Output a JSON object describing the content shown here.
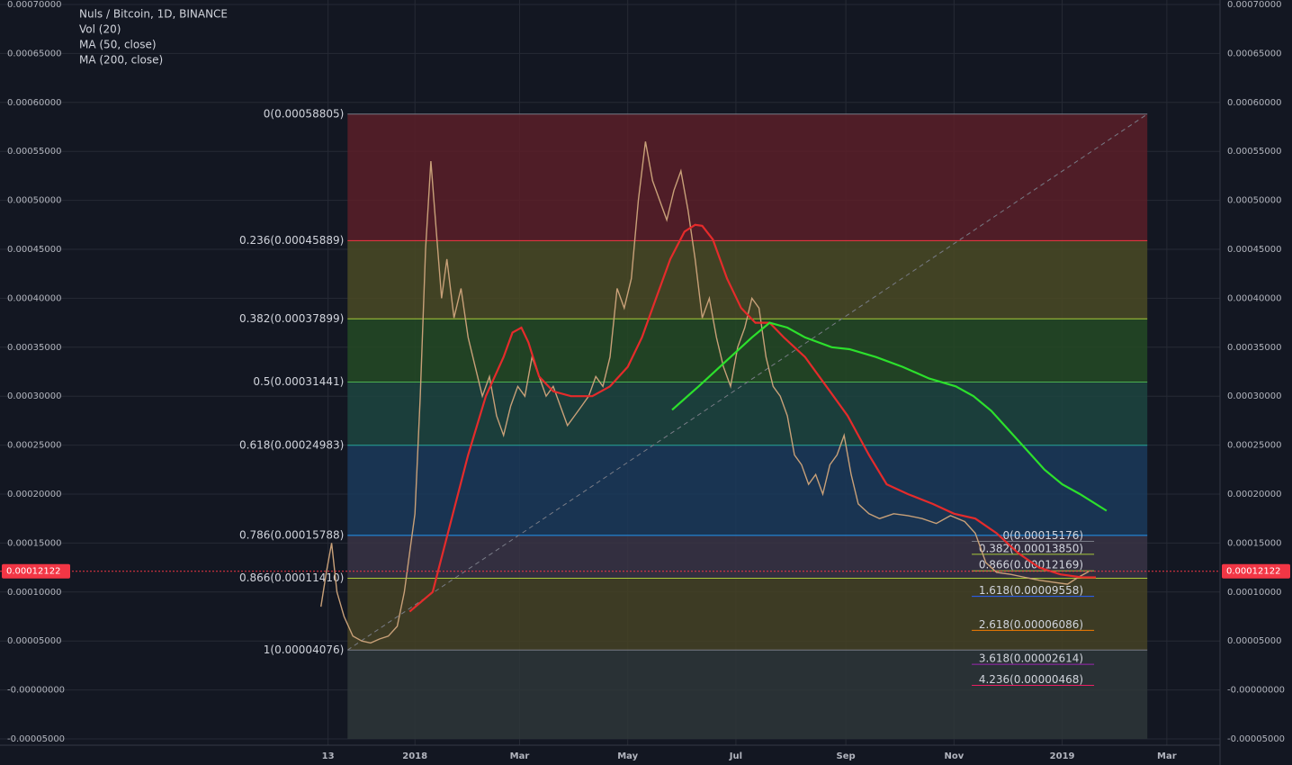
{
  "chart_data": {
    "type": "line",
    "title": "Nuls / Bitcoin, 1D, BINANCE",
    "indicators": [
      "Vol (20)",
      "MA (50, close)",
      "MA (200, close)"
    ],
    "xlim": [
      -234,
      454
    ],
    "xticks": [
      {
        "value": -49,
        "label": "13"
      },
      {
        "value": 0,
        "label": "2018"
      },
      {
        "value": 59,
        "label": "Mar"
      },
      {
        "value": 120,
        "label": "May"
      },
      {
        "value": 181,
        "label": "Jul"
      },
      {
        "value": 243,
        "label": "Sep"
      },
      {
        "value": 304,
        "label": "Nov"
      },
      {
        "value": 365,
        "label": "2019"
      },
      {
        "value": 424,
        "label": "Mar"
      }
    ],
    "ylim": [
      -5e-05,
      0.0007
    ],
    "yticks": [
      {
        "value": 0.0007,
        "label": "0.00070000"
      },
      {
        "value": 0.00065,
        "label": "0.00065000"
      },
      {
        "value": 0.0006,
        "label": "0.00060000"
      },
      {
        "value": 0.00055,
        "label": "0.00055000"
      },
      {
        "value": 0.0005,
        "label": "0.00050000"
      },
      {
        "value": 0.00045,
        "label": "0.00045000"
      },
      {
        "value": 0.0004,
        "label": "0.00040000"
      },
      {
        "value": 0.00035,
        "label": "0.00035000"
      },
      {
        "value": 0.0003,
        "label": "0.00030000"
      },
      {
        "value": 0.00025,
        "label": "0.00025000"
      },
      {
        "value": 0.0002,
        "label": "0.00020000"
      },
      {
        "value": 0.00015,
        "label": "0.00015000"
      },
      {
        "value": 0.0001,
        "label": "0.00010000"
      },
      {
        "value": 5e-05,
        "label": "0.00005000"
      },
      {
        "value": 0,
        "label": "-0.00000000"
      },
      {
        "value": -5e-05,
        "label": "-0.00005000"
      }
    ],
    "grid": true,
    "current_price": {
      "value": 0.00012122,
      "label": "0.00012122",
      "color": "#f23645"
    },
    "series": [
      {
        "color": "#c8a078",
        "x": [
          -53,
          -50,
          -47,
          -44,
          -40,
          -35,
          -30,
          -25,
          -20,
          -15,
          -10,
          -6,
          -3,
          0,
          3,
          6,
          9,
          12,
          15,
          18,
          22,
          26,
          30,
          34,
          38,
          42,
          46,
          50,
          54,
          58,
          62,
          66,
          70,
          74,
          78,
          82,
          86,
          90,
          94,
          98,
          102,
          106,
          110,
          114,
          118,
          122,
          126,
          130,
          134,
          138,
          142,
          146,
          150,
          154,
          158,
          162,
          166,
          170,
          174,
          178,
          182,
          186,
          190,
          194,
          198,
          202,
          206,
          210,
          214,
          218,
          222,
          226,
          230,
          234,
          238,
          242,
          246,
          250,
          256,
          262,
          270,
          278,
          286,
          294,
          302,
          310,
          316,
          322,
          328,
          336,
          344,
          352,
          360,
          368,
          374,
          380
        ],
        "values": [
          8.5e-05,
          0.00012,
          0.00015,
          0.0001,
          7.5e-05,
          5.5e-05,
          5e-05,
          4.8e-05,
          5.2e-05,
          5.5e-05,
          6.5e-05,
          0.0001,
          0.00014,
          0.00018,
          0.0003,
          0.00045,
          0.00054,
          0.00047,
          0.0004,
          0.00044,
          0.00038,
          0.00041,
          0.00036,
          0.00033,
          0.0003,
          0.00032,
          0.00028,
          0.00026,
          0.00029,
          0.00031,
          0.0003,
          0.00034,
          0.00032,
          0.0003,
          0.00031,
          0.00029,
          0.00027,
          0.00028,
          0.00029,
          0.0003,
          0.00032,
          0.00031,
          0.00034,
          0.00041,
          0.00039,
          0.00042,
          0.0005,
          0.00056,
          0.00052,
          0.0005,
          0.00048,
          0.00051,
          0.00053,
          0.00049,
          0.00044,
          0.00038,
          0.0004,
          0.00036,
          0.00033,
          0.00031,
          0.00035,
          0.00037,
          0.0004,
          0.00039,
          0.00034,
          0.00031,
          0.0003,
          0.00028,
          0.00024,
          0.00023,
          0.00021,
          0.00022,
          0.0002,
          0.00023,
          0.00024,
          0.00026,
          0.00022,
          0.00019,
          0.00018,
          0.000175,
          0.00018,
          0.000178,
          0.000175,
          0.00017,
          0.000178,
          0.000172,
          0.00016,
          0.00013,
          0.00012,
          0.000118,
          0.000115,
          0.000112,
          0.00011,
          0.000108,
          0.000115,
          0.000121
        ]
      },
      {
        "name": "MA (50, close)",
        "color": "#e52b2b",
        "x": [
          -3,
          10,
          20,
          30,
          40,
          50,
          55,
          60,
          64,
          70,
          78,
          88,
          100,
          110,
          120,
          128,
          136,
          144,
          152,
          158,
          162,
          168,
          176,
          184,
          192,
          200,
          208,
          220,
          232,
          244,
          256,
          266,
          278,
          292,
          304,
          316,
          328,
          340,
          352,
          364,
          376,
          384
        ],
        "values": [
          8e-05,
          0.0001,
          0.00017,
          0.00024,
          0.0003,
          0.00034,
          0.000365,
          0.00037,
          0.000355,
          0.00032,
          0.000305,
          0.0003,
          0.0003,
          0.00031,
          0.00033,
          0.00036,
          0.0004,
          0.00044,
          0.000468,
          0.000475,
          0.000474,
          0.00046,
          0.00042,
          0.00039,
          0.000375,
          0.000375,
          0.00036,
          0.00034,
          0.00031,
          0.00028,
          0.00024,
          0.00021,
          0.0002,
          0.00019,
          0.00018,
          0.000175,
          0.00016,
          0.00014,
          0.000125,
          0.000118,
          0.000115,
          0.000115
        ]
      },
      {
        "name": "MA (200, close)",
        "color": "#2ce02c",
        "x": [
          145,
          160,
          175,
          190,
          200,
          210,
          220,
          235,
          245,
          260,
          275,
          290,
          305,
          315,
          325,
          335,
          345,
          355,
          365,
          375,
          390
        ],
        "values": [
          0.000286,
          0.00031,
          0.000335,
          0.00036,
          0.000375,
          0.00037,
          0.00036,
          0.00035,
          0.000348,
          0.00034,
          0.00033,
          0.000318,
          0.00031,
          0.0003,
          0.000285,
          0.000265,
          0.000245,
          0.000225,
          0.00021,
          0.0002,
          0.000183
        ]
      }
    ],
    "fibs": [
      {
        "x": [
          -38,
          413
        ],
        "levels": [
          {
            "value": 0.00058805,
            "label": "0(0.00058805)",
            "color": "#787b86",
            "fill": "#5a1f28"
          },
          {
            "value": 0.00045889,
            "label": "0.236(0.00045889)",
            "color": "#f23645",
            "fill": "#4a4a24"
          },
          {
            "value": 0.00037899,
            "label": "0.382(0.00037899)",
            "color": "#a8c93a",
            "fill": "#244a24"
          },
          {
            "value": 0.00031441,
            "label": "0.5(0.00031441)",
            "color": "#4caf50",
            "fill": "#1d4540"
          },
          {
            "value": 0.00024983,
            "label": "0.618(0.00024983)",
            "color": "#27a69a",
            "fill": "#1b3a5a"
          },
          {
            "value": 0.00015788,
            "label": "0.786(0.00015788)",
            "color": "#2196f3",
            "fill": "#3a3445"
          },
          {
            "value": 0.0001141,
            "label": "0.866(0.00011410)",
            "color": "#a8c93a",
            "fill": "#454225"
          },
          {
            "value": 4.076e-05,
            "label": "1(0.00004076)",
            "color": "#787b86",
            "fill": "#2e3638"
          }
        ]
      },
      {
        "x": [
          314,
          383
        ],
        "levels": [
          {
            "value": 0.00015176,
            "label": "0(0.00015176)",
            "color": "#787b86"
          },
          {
            "value": 0.0001385,
            "label": "0.382(0.00013850)",
            "color": "#a8c93a"
          },
          {
            "value": 0.00012169,
            "label": "0.866(0.00012169)",
            "color": "#a8c93a"
          },
          {
            "value": 9.558e-05,
            "label": "1.618(0.00009558)",
            "color": "#2962ff"
          },
          {
            "value": 6.086e-05,
            "label": "2.618(0.00006086)",
            "color": "#f57c00"
          },
          {
            "value": 2.614e-05,
            "label": "3.618(0.00002614)",
            "color": "#9c27b0"
          },
          {
            "value": 4.68e-06,
            "label": "4.236(0.00000468)",
            "color": "#e91e63"
          }
        ]
      }
    ]
  }
}
